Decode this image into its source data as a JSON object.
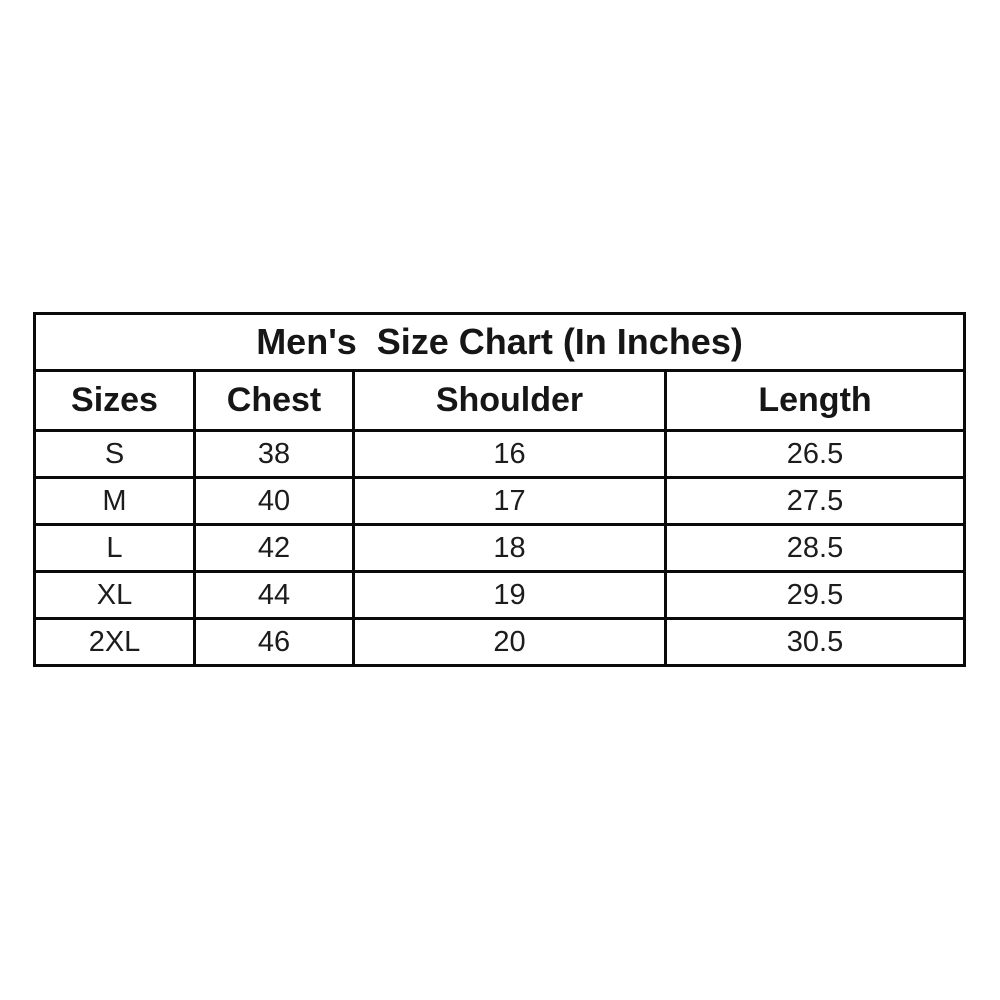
{
  "colors": {
    "background": "#ffffff",
    "border": "#0a0a0a",
    "text": "#161616"
  },
  "chart_data": {
    "type": "table",
    "title": "Men's  Size Chart (In Inches)",
    "columns": [
      "Sizes",
      "Chest",
      "Shoulder",
      "Length"
    ],
    "rows": [
      {
        "size": "S",
        "chest": "38",
        "shoulder": "16",
        "length": "26.5"
      },
      {
        "size": "M",
        "chest": "40",
        "shoulder": "17",
        "length": "27.5"
      },
      {
        "size": "L",
        "chest": "42",
        "shoulder": "18",
        "length": "28.5"
      },
      {
        "size": "XL",
        "chest": "44",
        "shoulder": "19",
        "length": "29.5"
      },
      {
        "size": "2XL",
        "chest": "46",
        "shoulder": "20",
        "length": "30.5"
      }
    ]
  }
}
